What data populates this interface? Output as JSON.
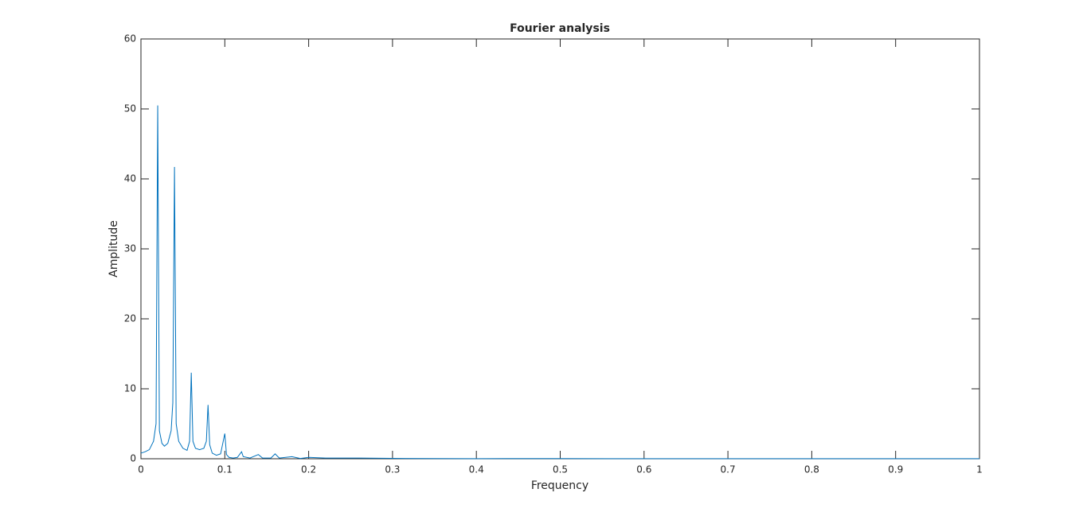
{
  "chart_data": {
    "type": "line",
    "title": "Fourier analysis",
    "xlabel": "Frequency",
    "ylabel": "Amplitude",
    "x": [
      0,
      0.005,
      0.01,
      0.015,
      0.018,
      0.02,
      0.022,
      0.025,
      0.028,
      0.032,
      0.036,
      0.038,
      0.04,
      0.042,
      0.045,
      0.05,
      0.055,
      0.058,
      0.06,
      0.062,
      0.065,
      0.07,
      0.075,
      0.078,
      0.08,
      0.082,
      0.085,
      0.09,
      0.095,
      0.1,
      0.102,
      0.105,
      0.11,
      0.115,
      0.12,
      0.122,
      0.13,
      0.14,
      0.145,
      0.155,
      0.16,
      0.165,
      0.18,
      0.19,
      0.2,
      0.22,
      0.26,
      0.3,
      0.4,
      0.5,
      0.6,
      0.8,
      1
    ],
    "series": [
      {
        "color": "#0072bd",
        "values": [
          0.8,
          1.0,
          1.3,
          2.5,
          5,
          50.5,
          4,
          2.2,
          1.8,
          2.2,
          4,
          8,
          41.7,
          5,
          2.5,
          1.5,
          1.2,
          2.5,
          12.3,
          2.5,
          1.5,
          1.3,
          1.5,
          2.5,
          7.7,
          2,
          0.8,
          0.5,
          0.7,
          3.6,
          0.6,
          0.2,
          0.1,
          0.2,
          1.0,
          0.3,
          0.1,
          0.6,
          0.1,
          0.1,
          0.7,
          0.1,
          0.3,
          0.05,
          0.2,
          0.1,
          0.1,
          0.05,
          0.02,
          0.03,
          0.01,
          0.01,
          0.01
        ]
      }
    ],
    "xlim": [
      0,
      1
    ],
    "xticks": [
      0,
      0.1,
      0.2,
      0.3,
      0.4,
      0.5,
      0.6,
      0.7,
      0.8,
      0.9,
      1
    ],
    "ylim": [
      0,
      60
    ],
    "yticks": [
      0,
      10,
      20,
      30,
      40,
      50,
      60
    ],
    "grid": false
  }
}
